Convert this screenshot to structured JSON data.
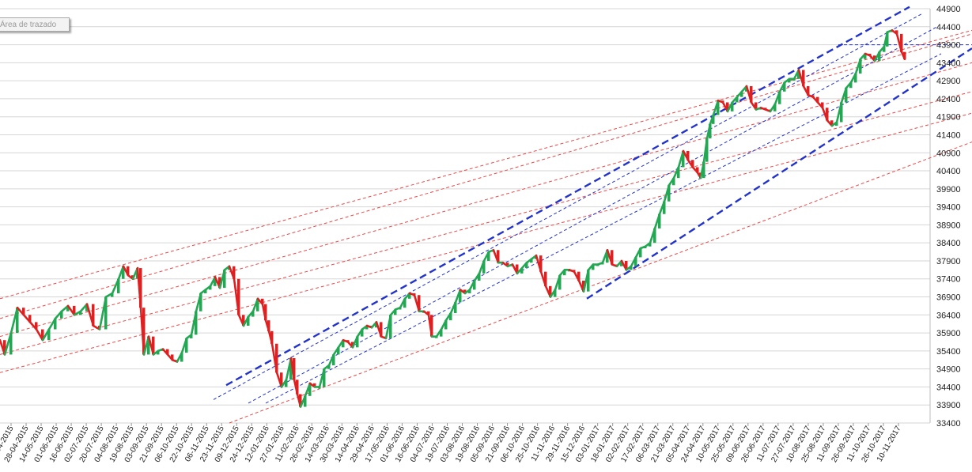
{
  "chart_data": {
    "type": "candlestick",
    "title": "",
    "xlabel": "",
    "ylabel": "",
    "ylim": [
      33400,
      44900
    ],
    "y_ticks": [
      33400,
      33900,
      34400,
      34900,
      35400,
      35900,
      36400,
      36900,
      37400,
      37900,
      38400,
      38900,
      39400,
      39900,
      40400,
      40900,
      41400,
      41900,
      42400,
      42900,
      43400,
      43900,
      44400,
      44900
    ],
    "x_ticks": [
      "-04-2015",
      "28-04-2015",
      "14-05-2015",
      "01-06-2015",
      "16-06-2015",
      "02-07-2015",
      "20-07-2015",
      "04-08-2015",
      "19-08-2015",
      "03-09-2015",
      "21-09-2015",
      "06-10-2015",
      "22-10-2015",
      "06-11-2015",
      "23-11-2015",
      "09-12-2015",
      "24-12-2015",
      "12-01-2016",
      "27-01-2016",
      "11-02-2016",
      "26-02-2016",
      "14-03-2016",
      "30-03-2016",
      "14-04-2016",
      "29-04-2016",
      "17-05-2016",
      "01-06-2016",
      "16-06-2016",
      "04-07-2016",
      "19-07-2016",
      "03-08-2016",
      "19-08-2016",
      "05-09-2016",
      "21-09-2016",
      "06-10-2016",
      "25-10-2016",
      "11-11-2016",
      "29-11-2016",
      "15-12-2016",
      "03-01-2017",
      "18-01-2017",
      "02-02-2017",
      "17-02-2017",
      "06-03-2017",
      "21-03-2017",
      "05-04-2017",
      "24-04-2017",
      "10-05-2017",
      "25-05-2017",
      "09-06-2017",
      "26-06-2017",
      "11-07-2017",
      "27-07-2017",
      "10-08-2017",
      "25-08-2017",
      "11-09-2017",
      "26-09-2017",
      "11-10-2017",
      "26-10-2017",
      "10-11-2017"
    ],
    "series": [
      {
        "values": [
          [
            0,
            35700
          ],
          [
            6,
            35300
          ],
          [
            14,
            35900
          ],
          [
            22,
            36600
          ],
          [
            30,
            36400
          ],
          [
            38,
            36200
          ],
          [
            46,
            36000
          ],
          [
            54,
            35700
          ],
          [
            62,
            36000
          ],
          [
            70,
            36300
          ],
          [
            78,
            36500
          ],
          [
            86,
            36650
          ],
          [
            94,
            36400
          ],
          [
            102,
            36500
          ],
          [
            110,
            36700
          ],
          [
            118,
            36100
          ],
          [
            126,
            36000
          ],
          [
            134,
            36900
          ],
          [
            142,
            37000
          ],
          [
            150,
            37400
          ],
          [
            156,
            37750
          ],
          [
            162,
            37500
          ],
          [
            168,
            37400
          ],
          [
            174,
            37700
          ],
          [
            178,
            36600
          ],
          [
            182,
            35300
          ],
          [
            188,
            35800
          ],
          [
            194,
            35300
          ],
          [
            200,
            35400
          ],
          [
            206,
            35450
          ],
          [
            212,
            35300
          ],
          [
            218,
            35150
          ],
          [
            224,
            35100
          ],
          [
            230,
            35350
          ],
          [
            236,
            35750
          ],
          [
            242,
            35850
          ],
          [
            248,
            36500
          ],
          [
            254,
            37000
          ],
          [
            260,
            37100
          ],
          [
            266,
            37200
          ],
          [
            272,
            37450
          ],
          [
            278,
            37150
          ],
          [
            284,
            37650
          ],
          [
            290,
            37750
          ],
          [
            296,
            37400
          ],
          [
            302,
            36400
          ],
          [
            308,
            36100
          ],
          [
            314,
            36350
          ],
          [
            320,
            36500
          ],
          [
            326,
            36850
          ],
          [
            332,
            36700
          ],
          [
            336,
            36250
          ],
          [
            340,
            35950
          ],
          [
            344,
            35600
          ],
          [
            350,
            34800
          ],
          [
            356,
            34400
          ],
          [
            362,
            34600
          ],
          [
            368,
            35200
          ],
          [
            372,
            34600
          ],
          [
            376,
            34200
          ],
          [
            380,
            33850
          ],
          [
            386,
            34150
          ],
          [
            392,
            34500
          ],
          [
            398,
            34400
          ],
          [
            404,
            34400
          ],
          [
            410,
            34900
          ],
          [
            416,
            35000
          ],
          [
            422,
            35300
          ],
          [
            428,
            35500
          ],
          [
            434,
            35700
          ],
          [
            440,
            35650
          ],
          [
            446,
            35500
          ],
          [
            452,
            35800
          ],
          [
            458,
            36000
          ],
          [
            464,
            36100
          ],
          [
            470,
            36050
          ],
          [
            476,
            36200
          ],
          [
            482,
            35800
          ],
          [
            488,
            35750
          ],
          [
            494,
            36400
          ],
          [
            500,
            36550
          ],
          [
            506,
            36600
          ],
          [
            512,
            36850
          ],
          [
            518,
            37000
          ],
          [
            524,
            36950
          ],
          [
            530,
            36500
          ],
          [
            536,
            36500
          ],
          [
            542,
            36400
          ],
          [
            546,
            35800
          ],
          [
            552,
            35800
          ],
          [
            558,
            36000
          ],
          [
            564,
            36250
          ],
          [
            570,
            36450
          ],
          [
            576,
            36750
          ],
          [
            582,
            37100
          ],
          [
            588,
            37000
          ],
          [
            594,
            37100
          ],
          [
            600,
            37350
          ],
          [
            606,
            37550
          ],
          [
            612,
            37900
          ],
          [
            618,
            38150
          ],
          [
            624,
            38200
          ],
          [
            630,
            37850
          ],
          [
            636,
            37850
          ],
          [
            642,
            37750
          ],
          [
            648,
            37800
          ],
          [
            654,
            37550
          ],
          [
            660,
            37700
          ],
          [
            666,
            37850
          ],
          [
            672,
            37950
          ],
          [
            678,
            38050
          ],
          [
            684,
            37600
          ],
          [
            690,
            37200
          ],
          [
            696,
            36900
          ],
          [
            702,
            37100
          ],
          [
            708,
            37500
          ],
          [
            714,
            37650
          ],
          [
            720,
            37650
          ],
          [
            726,
            37600
          ],
          [
            732,
            37350
          ],
          [
            738,
            37050
          ],
          [
            744,
            37650
          ],
          [
            750,
            37800
          ],
          [
            756,
            37800
          ],
          [
            762,
            37850
          ],
          [
            768,
            38200
          ],
          [
            774,
            37800
          ],
          [
            780,
            37750
          ],
          [
            786,
            37900
          ],
          [
            792,
            37650
          ],
          [
            798,
            37750
          ],
          [
            804,
            38000
          ],
          [
            810,
            38250
          ],
          [
            816,
            38300
          ],
          [
            822,
            38400
          ],
          [
            828,
            38800
          ],
          [
            834,
            39200
          ],
          [
            840,
            39550
          ],
          [
            846,
            40000
          ],
          [
            852,
            40200
          ],
          [
            858,
            40500
          ],
          [
            864,
            40950
          ],
          [
            870,
            40700
          ],
          [
            876,
            40500
          ],
          [
            882,
            40350
          ],
          [
            886,
            40200
          ],
          [
            890,
            40650
          ],
          [
            894,
            41300
          ],
          [
            898,
            41700
          ],
          [
            902,
            41950
          ],
          [
            908,
            42350
          ],
          [
            914,
            42300
          ],
          [
            920,
            42050
          ],
          [
            926,
            42300
          ],
          [
            932,
            42450
          ],
          [
            938,
            42600
          ],
          [
            944,
            42750
          ],
          [
            950,
            42300
          ],
          [
            956,
            42100
          ],
          [
            962,
            42150
          ],
          [
            968,
            42100
          ],
          [
            974,
            42050
          ],
          [
            980,
            42250
          ],
          [
            986,
            42600
          ],
          [
            992,
            42850
          ],
          [
            998,
            42950
          ],
          [
            1004,
            42950
          ],
          [
            1010,
            43200
          ],
          [
            1016,
            42750
          ],
          [
            1022,
            42500
          ],
          [
            1028,
            42450
          ],
          [
            1034,
            42300
          ],
          [
            1040,
            42150
          ],
          [
            1046,
            41800
          ],
          [
            1052,
            41650
          ],
          [
            1058,
            41750
          ],
          [
            1064,
            42300
          ],
          [
            1070,
            42700
          ],
          [
            1076,
            42850
          ],
          [
            1082,
            43100
          ],
          [
            1088,
            43500
          ],
          [
            1094,
            43650
          ],
          [
            1100,
            43600
          ],
          [
            1106,
            43450
          ],
          [
            1112,
            43700
          ],
          [
            1118,
            43850
          ],
          [
            1122,
            44250
          ],
          [
            1128,
            44300
          ],
          [
            1134,
            44200
          ],
          [
            1140,
            43700
          ],
          [
            1144,
            43500
          ]
        ]
      }
    ],
    "trendlines": [
      {
        "style": "red-dashed",
        "from": [
          0,
          36850
        ],
        "to": [
          1229,
          44300
        ]
      },
      {
        "style": "red-dashed",
        "from": [
          0,
          36300
        ],
        "to": [
          1229,
          44200
        ]
      },
      {
        "style": "red-dashed",
        "from": [
          0,
          35800
        ],
        "to": [
          1229,
          43400
        ]
      },
      {
        "style": "red-dashed",
        "from": [
          0,
          35300
        ],
        "to": [
          1229,
          42600
        ]
      },
      {
        "style": "red-dashed",
        "from": [
          0,
          34800
        ],
        "to": [
          1229,
          42000
        ]
      },
      {
        "style": "red-dashed",
        "from": [
          290,
          33400
        ],
        "to": [
          1229,
          41200
        ]
      },
      {
        "style": "blue-dashed-bold",
        "from": [
          286,
          34450
        ],
        "to": [
          1150,
          44950
        ]
      },
      {
        "style": "blue-dashed-bold",
        "from": [
          742,
          36850
        ],
        "to": [
          1229,
          43800
        ]
      },
      {
        "style": "blue-dashed",
        "from": [
          270,
          34050
        ],
        "to": [
          1165,
          44750
        ]
      },
      {
        "style": "blue-dashed",
        "from": [
          314,
          33950
        ],
        "to": [
          1185,
          44400
        ]
      },
      {
        "style": "blue-dashed",
        "from": [
          336,
          33950
        ],
        "to": [
          1190,
          43650
        ]
      },
      {
        "style": "blue-dashed",
        "from": [
          1060,
          43900
        ],
        "to": [
          1229,
          43900
        ]
      }
    ]
  },
  "tooltip": {
    "text": "Área de trazado"
  },
  "colors": {
    "up": "#22a852",
    "down": "#e02020",
    "grid": "#d6d6d6",
    "trend_red": "#e84a4a",
    "trend_blue": "#2233cc"
  }
}
